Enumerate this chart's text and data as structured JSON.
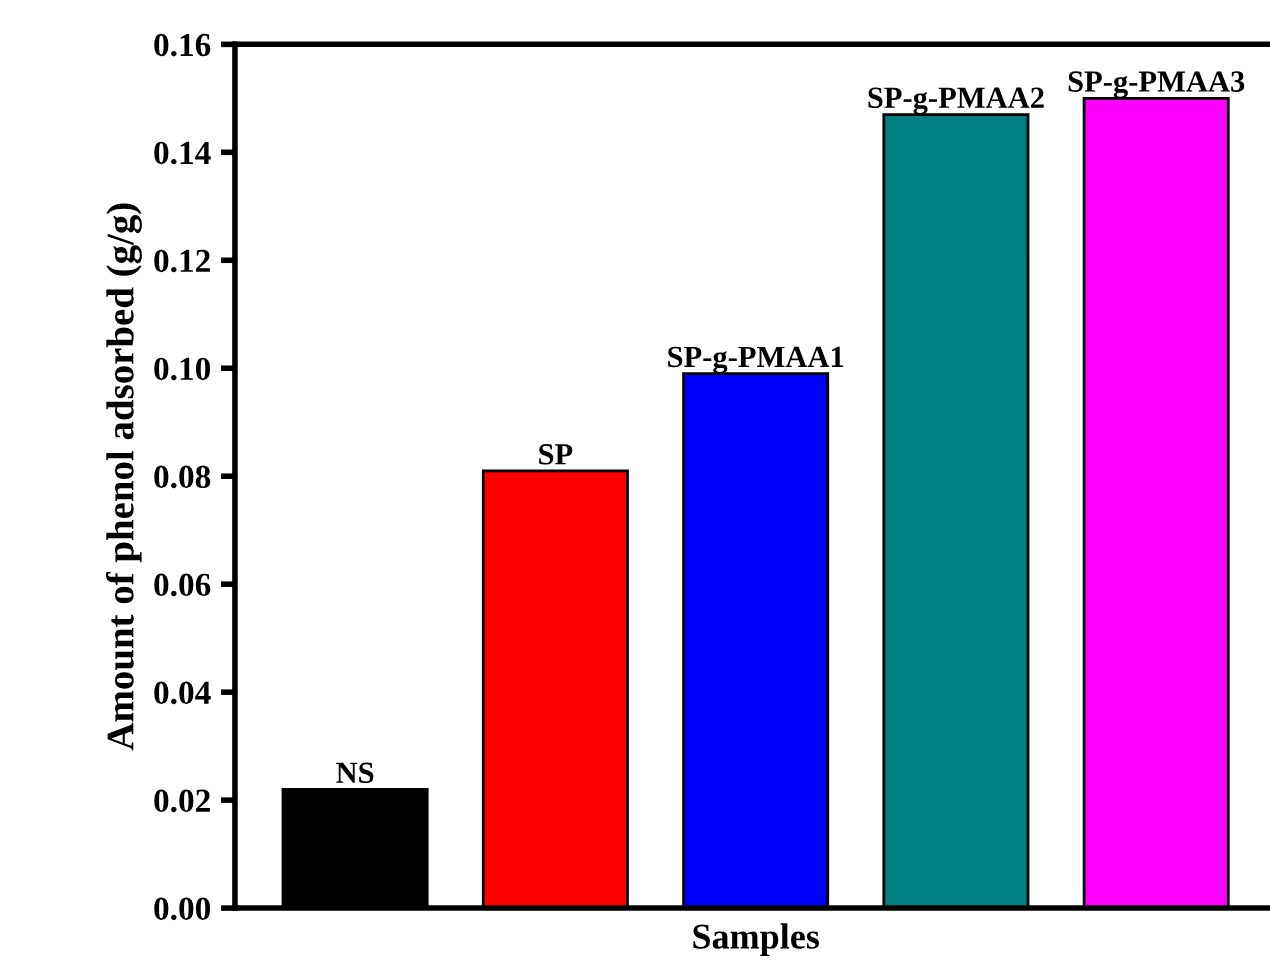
{
  "chart_data": {
    "type": "bar",
    "xlabel": "Samples",
    "ylabel": "Amount of phenol adsorbed (g/g)",
    "categories": [
      "NS",
      "SP",
      "SP-g-PMAA1",
      "SP-g-PMAA2",
      "SP-g-PMAA3"
    ],
    "values": [
      0.022,
      0.081,
      0.099,
      0.147,
      0.15
    ],
    "colors": [
      "#000000",
      "#ff0000",
      "#0000ff",
      "#008080",
      "#ff00ff"
    ],
    "ylim": [
      0,
      0.16
    ],
    "yticks": [
      {
        "value": 0,
        "label": "0.00"
      },
      {
        "value": 0.02,
        "label": "0.02"
      },
      {
        "value": 0.04,
        "label": "0.04"
      },
      {
        "value": 0.06,
        "label": "0.06"
      },
      {
        "value": 0.08,
        "label": "0.08"
      },
      {
        "value": 0.1,
        "label": "0.10"
      },
      {
        "value": 0.12,
        "label": "0.12"
      },
      {
        "value": 0.14,
        "label": "0.14"
      },
      {
        "value": 0.16,
        "label": "0.16"
      }
    ],
    "tick_labels": "y",
    "grid": false,
    "legend": false
  }
}
